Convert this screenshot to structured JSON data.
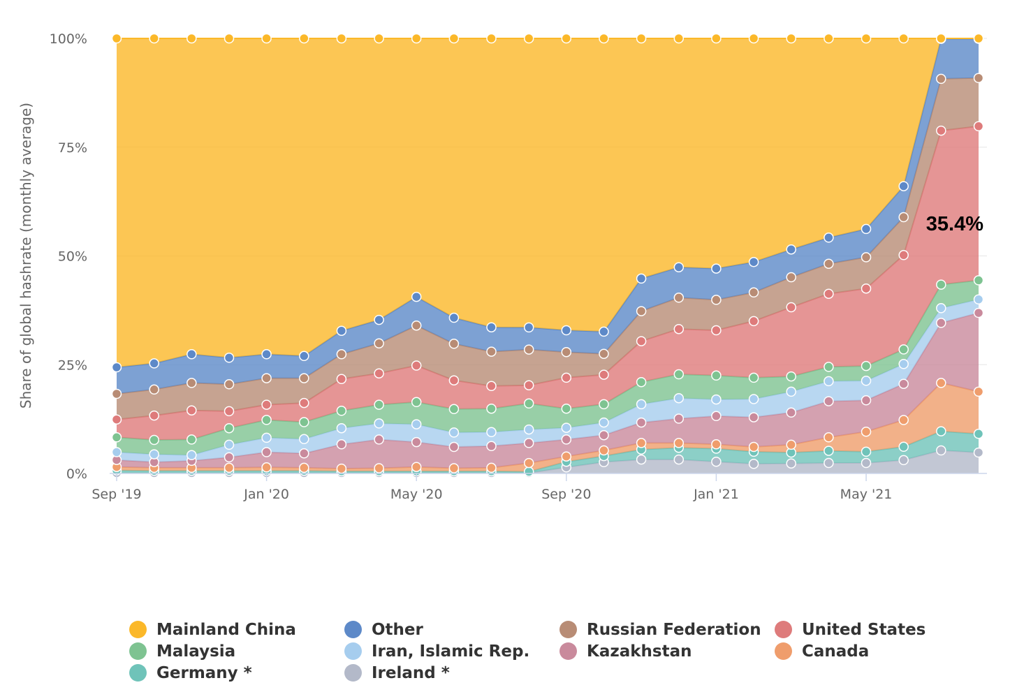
{
  "chart_data": {
    "type": "area",
    "stacking": "percent",
    "title": "",
    "xlabel": "",
    "ylabel": "Share of global hashrate (monthly average)",
    "ylim": [
      0,
      100
    ],
    "y_ticks": [
      "0%",
      "25%",
      "50%",
      "75%",
      "100%"
    ],
    "y_tick_values": [
      0,
      25,
      50,
      75,
      100
    ],
    "x_ticks": [
      "Sep '19",
      "Jan '20",
      "May '20",
      "Sep '20",
      "Jan '21",
      "May '21"
    ],
    "x_tick_indices": [
      0,
      4,
      8,
      12,
      16,
      20
    ],
    "x": [
      "2019-09",
      "2019-10",
      "2019-11",
      "2019-12",
      "2020-01",
      "2020-02",
      "2020-03",
      "2020-04",
      "2020-05",
      "2020-06",
      "2020-07",
      "2020-08",
      "2020-09",
      "2020-10",
      "2020-11",
      "2020-12",
      "2021-01",
      "2021-02",
      "2021-03",
      "2021-04",
      "2021-05",
      "2021-06",
      "2021-07",
      "2021-08"
    ],
    "series": [
      {
        "name": "Ireland *",
        "color": "#b3b9c9",
        "values": [
          0.1,
          0.1,
          0.1,
          0.1,
          0.1,
          0.1,
          0.1,
          0.1,
          0.1,
          0.1,
          0.1,
          0.1,
          1.4,
          2.6,
          3.2,
          3.2,
          2.7,
          2.2,
          2.3,
          2.4,
          2.4,
          3.1,
          5.3,
          4.8
        ]
      },
      {
        "name": "Germany *",
        "color": "#6fc3b9",
        "values": [
          0.6,
          0.5,
          0.5,
          0.5,
          0.5,
          0.5,
          0.4,
          0.4,
          0.4,
          0.4,
          0.4,
          0.3,
          1.3,
          1.4,
          2.3,
          2.7,
          3.0,
          2.8,
          2.5,
          2.8,
          2.6,
          3.1,
          4.4,
          4.3
        ]
      },
      {
        "name": "Canada",
        "color": "#ef9d6c",
        "values": [
          0.8,
          0.7,
          0.7,
          0.7,
          0.8,
          0.7,
          0.6,
          0.7,
          1.0,
          0.7,
          0.8,
          2.0,
          1.2,
          1.3,
          1.5,
          1.1,
          1.0,
          1.1,
          1.8,
          3.1,
          4.6,
          6.2,
          11.1,
          9.7
        ]
      },
      {
        "name": "Kazakhstan",
        "color": "#c98a9c",
        "values": [
          1.6,
          1.3,
          1.6,
          2.4,
          3.5,
          3.3,
          5.6,
          6.6,
          5.7,
          4.9,
          5.0,
          4.6,
          3.9,
          3.5,
          4.7,
          5.6,
          6.5,
          6.8,
          7.4,
          8.3,
          7.2,
          8.4,
          13.8,
          18.1
        ]
      },
      {
        "name": "Iran, Islamic Rep.",
        "color": "#a6cdee",
        "values": [
          1.8,
          1.8,
          1.3,
          2.9,
          3.3,
          3.3,
          3.7,
          3.7,
          4.1,
          3.3,
          3.2,
          3.1,
          2.7,
          2.9,
          4.2,
          4.7,
          3.8,
          4.2,
          4.8,
          4.6,
          4.5,
          4.6,
          3.4,
          3.1
        ]
      },
      {
        "name": "Malaysia",
        "color": "#7ec391",
        "values": [
          3.4,
          3.3,
          3.6,
          3.8,
          4.1,
          3.9,
          4.0,
          4.3,
          5.1,
          5.4,
          5.4,
          6.0,
          4.4,
          4.2,
          5.1,
          5.5,
          5.5,
          4.9,
          3.5,
          3.3,
          3.4,
          3.4,
          5.4,
          4.4
        ]
      },
      {
        "name": "United States",
        "color": "#de7b7b",
        "values": [
          4.1,
          5.6,
          6.7,
          3.9,
          3.5,
          4.4,
          7.3,
          7.2,
          8.4,
          6.6,
          5.2,
          4.2,
          7.1,
          6.8,
          9.4,
          10.4,
          10.4,
          13.0,
          15.9,
          16.8,
          17.8,
          21.9,
          35.4,
          35.4
        ]
      },
      {
        "name": "Russian Federation",
        "color": "#b88c75",
        "values": [
          5.9,
          6.0,
          6.3,
          6.2,
          6.1,
          5.7,
          5.7,
          6.9,
          9.2,
          8.4,
          7.9,
          8.2,
          5.9,
          4.8,
          6.9,
          7.2,
          7.0,
          6.6,
          6.9,
          6.9,
          7.2,
          8.8,
          11.9,
          11.1
        ]
      },
      {
        "name": "Other",
        "color": "#5d89c8",
        "values": [
          6.1,
          6.0,
          6.6,
          6.1,
          5.5,
          5.1,
          5.4,
          5.4,
          6.6,
          6.0,
          5.6,
          5.1,
          5.0,
          5.1,
          7.5,
          7.0,
          7.2,
          7.0,
          6.4,
          6.0,
          6.5,
          7.2,
          9.2,
          9.0
        ]
      },
      {
        "name": "Mainland China",
        "color": "#fbb829",
        "values": [
          75.6,
          74.7,
          72.6,
          73.4,
          72.6,
          73.0,
          67.2,
          64.7,
          59.4,
          64.2,
          66.4,
          66.5,
          67.1,
          67.4,
          55.2,
          52.6,
          52.9,
          51.4,
          48.5,
          45.8,
          43.8,
          34.3,
          0.1,
          0.1
        ]
      }
    ],
    "legend_position": "bottom",
    "annotations": [
      {
        "text": "35.4%",
        "series": "United States",
        "index": 23
      }
    ]
  },
  "legend": {
    "items": [
      {
        "label": "Mainland China",
        "color": "#fbb829"
      },
      {
        "label": "Other",
        "color": "#5d89c8"
      },
      {
        "label": "Russian Federation",
        "color": "#b88c75"
      },
      {
        "label": "United States",
        "color": "#de7b7b"
      },
      {
        "label": "Malaysia",
        "color": "#7ec391"
      },
      {
        "label": "Iran, Islamic Rep.",
        "color": "#a6cdee"
      },
      {
        "label": "Kazakhstan",
        "color": "#c98a9c"
      },
      {
        "label": "Canada",
        "color": "#ef9d6c"
      },
      {
        "label": "Germany *",
        "color": "#6fc3b9"
      },
      {
        "label": "Ireland *",
        "color": "#b3b9c9"
      }
    ]
  }
}
